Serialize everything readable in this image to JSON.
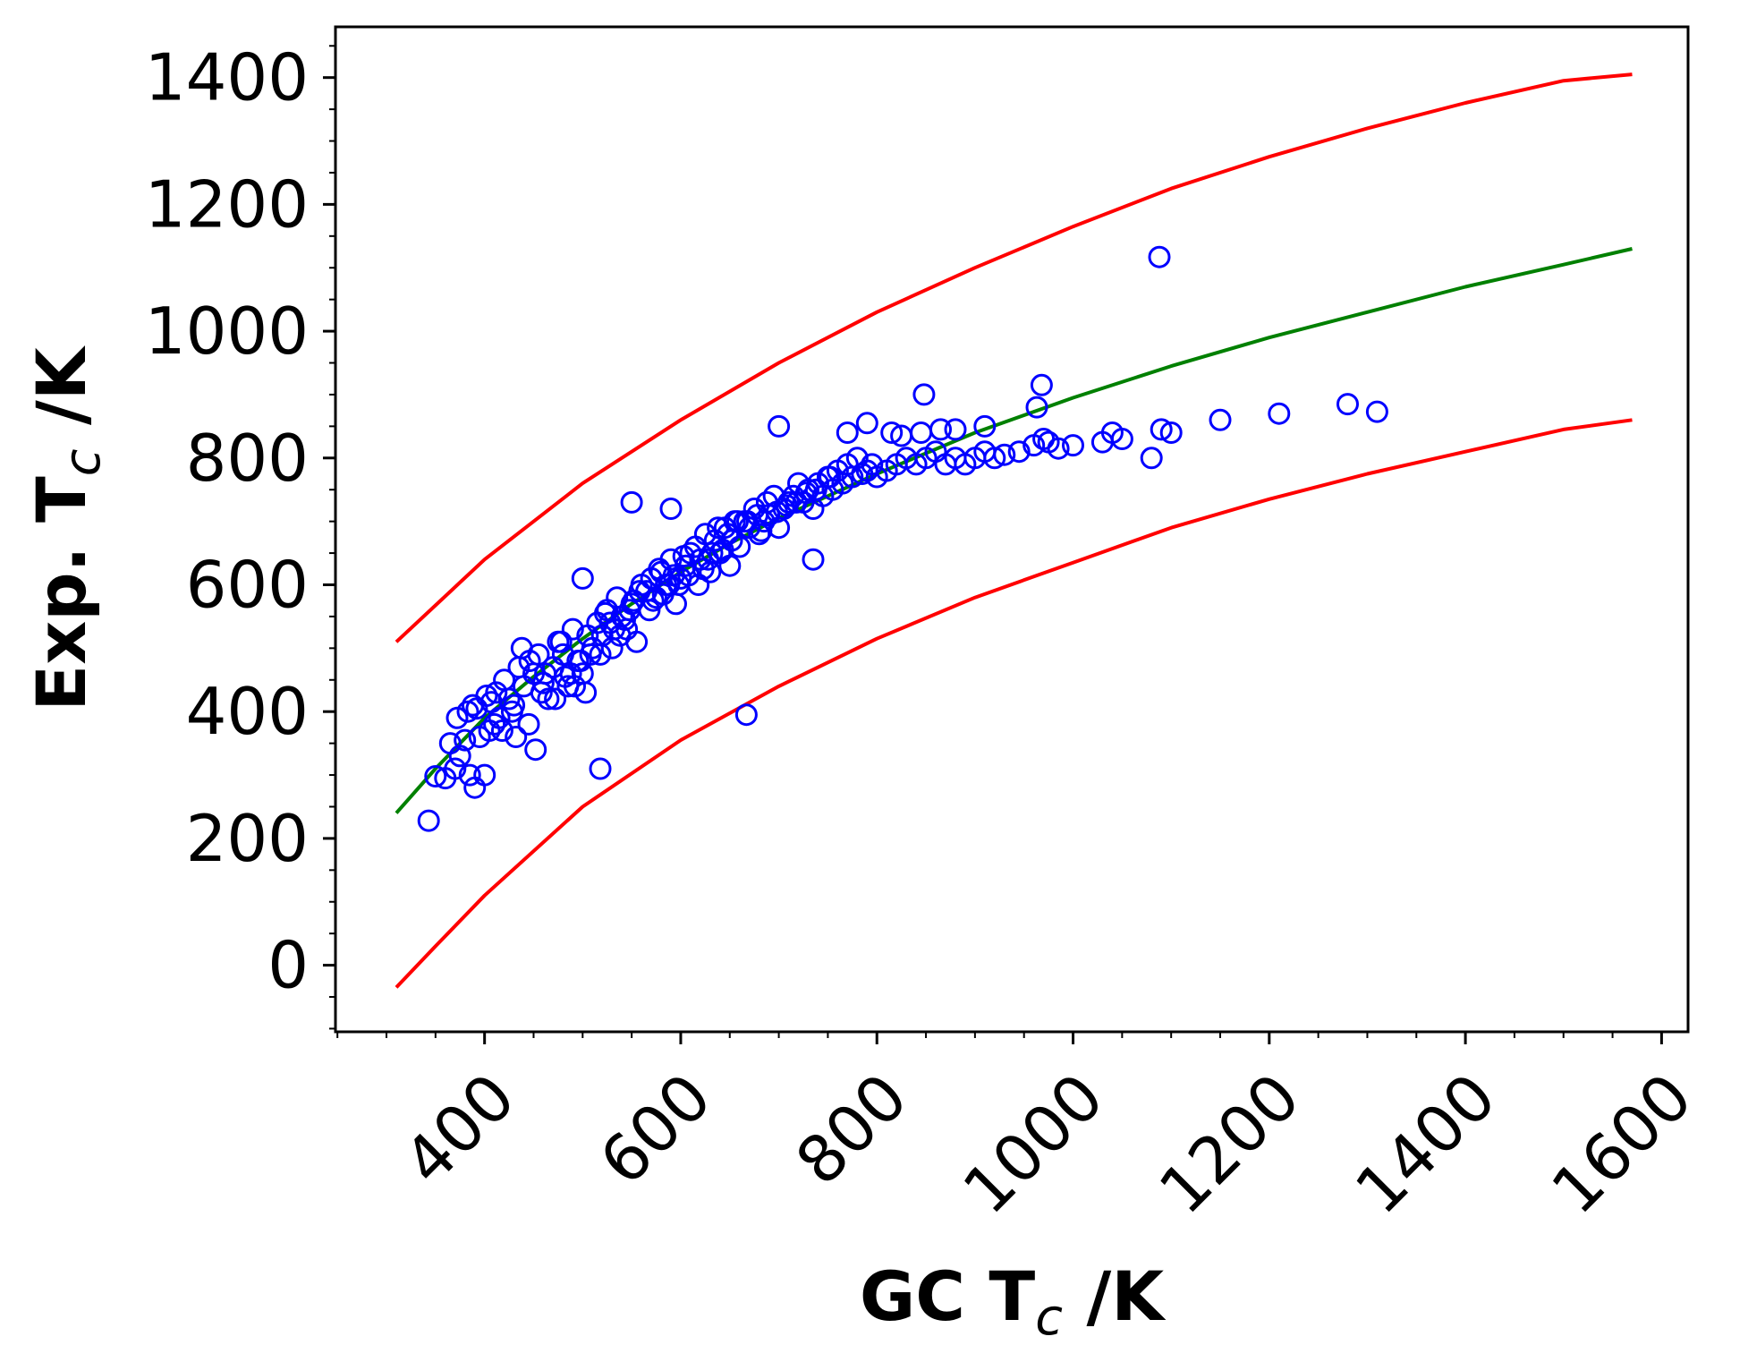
{
  "chart_data": {
    "type": "scatter",
    "title": "",
    "xlabel": {
      "main": "GC T",
      "sub": "c",
      "unit": " /K"
    },
    "ylabel": {
      "main": "Exp. T",
      "sub": "c",
      "unit": " /K"
    },
    "xlim": [
      248,
      1627
    ],
    "ylim": [
      -105,
      1480
    ],
    "x_ticks": [
      400,
      600,
      800,
      1000,
      1200,
      1400,
      1600
    ],
    "x_tick_labels": [
      "400",
      "600",
      "800",
      "1000",
      "1200",
      "1400",
      "1600"
    ],
    "y_ticks": [
      0,
      200,
      400,
      600,
      800,
      1000,
      1200,
      1400
    ],
    "y_tick_labels": [
      "0",
      "200",
      "400",
      "600",
      "800",
      "1000",
      "1200",
      "1400"
    ],
    "x_minor_step": 50,
    "y_minor_step": 50,
    "grid": false,
    "legend": "none",
    "colors": {
      "points": "#0000ff",
      "fit": "#008000",
      "bounds": "#ff0000"
    },
    "lines": [
      {
        "role": "upper-bound",
        "color": "#ff0000",
        "x": [
          310,
          400,
          500,
          600,
          700,
          800,
          900,
          1000,
          1100,
          1200,
          1300,
          1400,
          1500,
          1570
        ],
        "y": [
          510,
          640,
          760,
          860,
          950,
          1030,
          1100,
          1165,
          1225,
          1275,
          1320,
          1360,
          1395,
          1405
        ]
      },
      {
        "role": "fit",
        "color": "#008000",
        "x": [
          310,
          350,
          400,
          450,
          500,
          550,
          600,
          650,
          700,
          750,
          800,
          900,
          1000,
          1100,
          1200,
          1300,
          1400,
          1500,
          1570
        ],
        "y": [
          240,
          310,
          390,
          455,
          515,
          570,
          620,
          665,
          705,
          740,
          775,
          840,
          895,
          945,
          990,
          1030,
          1070,
          1105,
          1130
        ]
      },
      {
        "role": "lower-bound",
        "color": "#ff0000",
        "x": [
          310,
          350,
          400,
          500,
          600,
          700,
          800,
          900,
          1000,
          1100,
          1200,
          1300,
          1400,
          1500,
          1570
        ],
        "y": [
          -35,
          30,
          110,
          250,
          355,
          440,
          515,
          580,
          635,
          690,
          735,
          775,
          810,
          845,
          860
        ]
      }
    ],
    "points": {
      "x": [
        343,
        350,
        360,
        370,
        375,
        380,
        385,
        390,
        395,
        400,
        405,
        410,
        365,
        388,
        392,
        402,
        407,
        372,
        383,
        412,
        415,
        420,
        425,
        430,
        435,
        440,
        445,
        450,
        455,
        460,
        418,
        432,
        446,
        458,
        428,
        452,
        438,
        462,
        465,
        470,
        475,
        480,
        485,
        490,
        495,
        500,
        505,
        510,
        472,
        488,
        498,
        508,
        482,
        492,
        478,
        503,
        515,
        520,
        525,
        530,
        535,
        540,
        545,
        550,
        555,
        560,
        518,
        532,
        548,
        558,
        528,
        538,
        552,
        523,
        543,
        565,
        570,
        575,
        580,
        585,
        590,
        595,
        600,
        605,
        610,
        568,
        582,
        598,
        608,
        578,
        588,
        572,
        593,
        603,
        615,
        620,
        625,
        630,
        635,
        640,
        645,
        650,
        655,
        660,
        618,
        632,
        648,
        658,
        628,
        638,
        652,
        623,
        643,
        665,
        670,
        675,
        680,
        685,
        690,
        695,
        700,
        705,
        710,
        668,
        682,
        698,
        708,
        678,
        688,
        715,
        720,
        725,
        730,
        735,
        740,
        745,
        750,
        755,
        760,
        718,
        738,
        752,
        728,
        765,
        770,
        775,
        780,
        785,
        790,
        795,
        800,
        810,
        820,
        830,
        840,
        850,
        860,
        870,
        880,
        890,
        900,
        910,
        920,
        930,
        945,
        960,
        970,
        985,
        1000,
        1030,
        1040,
        1050,
        1080,
        1090,
        1100,
        1150,
        1210,
        1280,
        1310,
        963,
        968,
        848,
        790,
        770,
        700,
        550,
        590,
        500,
        518,
        667,
        735,
        1088,
        815,
        825,
        845,
        865,
        880,
        910,
        975
      ],
      "y": [
        228,
        298,
        295,
        310,
        330,
        355,
        300,
        280,
        360,
        300,
        370,
        380,
        350,
        410,
        405,
        425,
        415,
        390,
        400,
        430,
        390,
        450,
        420,
        410,
        470,
        440,
        380,
        460,
        490,
        445,
        370,
        360,
        480,
        430,
        400,
        340,
        500,
        460,
        420,
        470,
        510,
        490,
        440,
        530,
        480,
        460,
        520,
        500,
        420,
        460,
        480,
        490,
        455,
        440,
        510,
        430,
        540,
        520,
        560,
        500,
        580,
        550,
        530,
        570,
        510,
        600,
        490,
        530,
        560,
        590,
        540,
        520,
        575,
        555,
        545,
        590,
        610,
        580,
        620,
        600,
        640,
        570,
        610,
        630,
        650,
        560,
        585,
        600,
        615,
        625,
        600,
        575,
        615,
        645,
        660,
        640,
        680,
        620,
        670,
        650,
        690,
        630,
        700,
        660,
        600,
        650,
        680,
        700,
        640,
        690,
        670,
        625,
        655,
        700,
        690,
        720,
        680,
        700,
        710,
        740,
        690,
        720,
        730,
        700,
        685,
        715,
        725,
        710,
        730,
        740,
        760,
        730,
        750,
        720,
        760,
        740,
        770,
        750,
        780,
        730,
        750,
        770,
        745,
        760,
        790,
        770,
        800,
        775,
        780,
        790,
        770,
        780,
        790,
        800,
        790,
        800,
        810,
        790,
        800,
        790,
        800,
        810,
        800,
        805,
        810,
        820,
        830,
        815,
        820,
        825,
        840,
        830,
        800,
        845,
        840,
        860,
        870,
        885,
        873,
        880,
        915,
        900,
        855,
        840,
        850,
        730,
        720,
        610,
        310,
        395,
        640,
        1117,
        840,
        835,
        840,
        845,
        845,
        850,
        825
      ]
    }
  }
}
